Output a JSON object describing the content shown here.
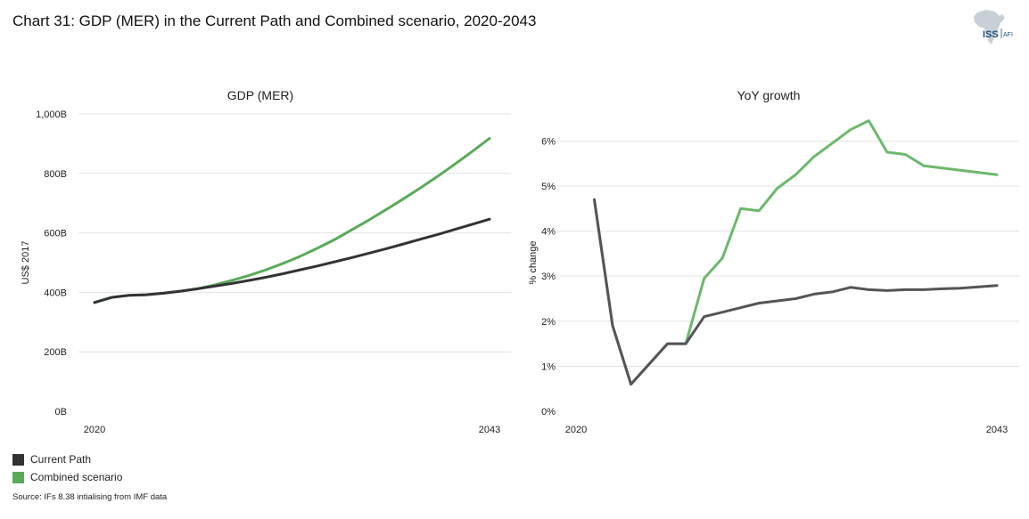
{
  "title": "Chart 31: GDP (MER) in the Current Path and Combined scenario, 2020-2043",
  "logo": {
    "main": "ISS",
    "sub": "AFI"
  },
  "source": "Source: IFs 8.38 intialising from IMF data",
  "colors": {
    "current_path": "#333333",
    "combined_scenario": "#5aaa5a",
    "grid": "#e3e3e3"
  },
  "legend": [
    {
      "label": "Current Path",
      "color": "#333333"
    },
    {
      "label": "Combined scenario",
      "color": "#5aaa5a"
    }
  ],
  "chart_data": [
    {
      "type": "line",
      "title": "GDP (MER)",
      "xlabel": "",
      "ylabel": "US$ 2017",
      "xlim": [
        2020,
        2043
      ],
      "ylim": [
        0,
        1000
      ],
      "x_tick_labels": [
        "2020",
        "2043"
      ],
      "y_tick_labels": [
        "0B",
        "200B",
        "400B",
        "600B",
        "800B",
        "1,000B"
      ],
      "y_ticks": [
        0,
        200,
        400,
        600,
        800,
        1000
      ],
      "grid": true,
      "x": [
        2020,
        2021,
        2022,
        2023,
        2024,
        2025,
        2026,
        2027,
        2028,
        2029,
        2030,
        2031,
        2032,
        2033,
        2034,
        2035,
        2036,
        2037,
        2038,
        2039,
        2040,
        2041,
        2042,
        2043
      ],
      "series": [
        {
          "name": "Current Path",
          "color": "#333333",
          "values": [
            366,
            383,
            390,
            392,
            397,
            404,
            412,
            421,
            430,
            440,
            451,
            463,
            476,
            489,
            503,
            517,
            532,
            547,
            563,
            579,
            595,
            612,
            629,
            646
          ]
        },
        {
          "name": "Combined scenario",
          "color": "#5aaa5a",
          "values": [
            366,
            383,
            390,
            392,
            397,
            404,
            412,
            425,
            440,
            457,
            476,
            498,
            522,
            549,
            578,
            611,
            644,
            679,
            715,
            752,
            791,
            832,
            874,
            918
          ]
        }
      ]
    },
    {
      "type": "line",
      "title": "YoY growth",
      "xlabel": "",
      "ylabel": "% change",
      "xlim": [
        2020,
        2043
      ],
      "ylim": [
        0,
        6.6
      ],
      "x_tick_labels": [
        "2020",
        "2043"
      ],
      "y_tick_labels": [
        "0%",
        "1%",
        "2%",
        "3%",
        "4%",
        "5%",
        "6%"
      ],
      "y_ticks": [
        0,
        1,
        2,
        3,
        4,
        5,
        6
      ],
      "grid": true,
      "x": [
        2021,
        2022,
        2023,
        2024,
        2025,
        2026,
        2027,
        2028,
        2029,
        2030,
        2031,
        2032,
        2033,
        2034,
        2035,
        2036,
        2037,
        2038,
        2039,
        2040,
        2041,
        2042,
        2043
      ],
      "series": [
        {
          "name": "Current Path",
          "color": "#555555",
          "values": [
            4.7,
            1.9,
            0.6,
            1.05,
            1.5,
            1.5,
            2.1,
            2.2,
            2.3,
            2.4,
            2.45,
            2.5,
            2.6,
            2.65,
            2.75,
            2.7,
            2.68,
            2.7,
            2.7,
            2.72,
            2.73,
            2.76,
            2.79
          ]
        },
        {
          "name": "Combined scenario",
          "color": "#6cb86c",
          "values": [
            4.7,
            1.9,
            0.6,
            1.05,
            1.5,
            1.5,
            2.95,
            3.4,
            4.5,
            4.45,
            4.95,
            5.25,
            5.65,
            5.95,
            6.25,
            6.45,
            5.75,
            5.7,
            5.45,
            5.4,
            5.35,
            5.3,
            5.25
          ]
        }
      ]
    }
  ]
}
